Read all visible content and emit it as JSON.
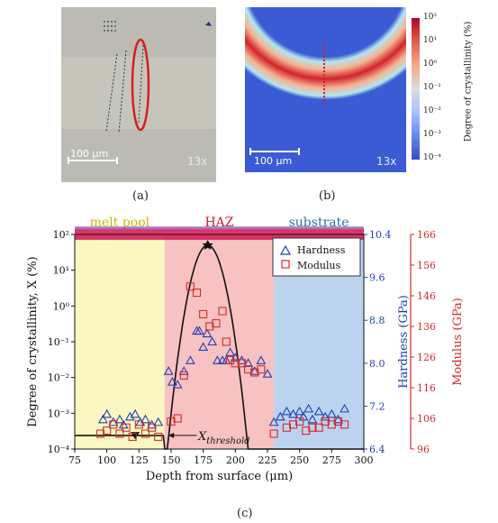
{
  "panel_a": {
    "label": "(a)",
    "scale_bar": "100 μm",
    "magnification": "13x"
  },
  "panel_b": {
    "label": "(b)",
    "scale_bar": "100 μm",
    "magnification": "13x",
    "colorbar": {
      "label": "Degree of crystallinity (%)",
      "ticks": [
        "10²",
        "10¹",
        "10⁰",
        "10⁻¹",
        "10⁻²",
        "10⁻³",
        "10⁻⁴"
      ]
    }
  },
  "panel_c": {
    "label": "(c)"
  },
  "colors": {
    "hardness": "#1f3fb5",
    "modulus": "#d42a2a",
    "melt_pool": "#fbf7c2",
    "haz": "#f8c2c2",
    "substrate": "#bcd3ef"
  },
  "chart_data": {
    "type": "scatter",
    "region_labels": [
      "melt pool",
      "HAZ",
      "substrate"
    ],
    "region_bounds": [
      [
        75,
        145
      ],
      [
        145,
        230
      ],
      [
        230,
        300
      ]
    ],
    "xlabel": "Depth from surface (μm)",
    "ylabel": "Degree of crystallinity, X (%)",
    "y2label": "Hardness (GPa)",
    "y3label": "Modulus (GPa)",
    "xlim": [
      75,
      300
    ],
    "ylim_log": [
      -4,
      2
    ],
    "y2lim": [
      6.4,
      10.4
    ],
    "y3lim": [
      96,
      166
    ],
    "x_ticks": [
      "75",
      "100",
      "125",
      "150",
      "175",
      "200",
      "225",
      "250",
      "275",
      "300"
    ],
    "y_ticks": [
      "10⁻⁴",
      "10⁻³",
      "10⁻²",
      "10⁻¹",
      "10⁰",
      "10¹",
      "10²"
    ],
    "y2_ticks": [
      "6.4",
      "7.2",
      "8.0",
      "8.8",
      "9.6",
      "10.4"
    ],
    "y3_ticks": [
      "96",
      "106",
      "116",
      "126",
      "136",
      "146",
      "156",
      "166"
    ],
    "threshold_label": "X_threshold",
    "legend": [
      "Hardness",
      "Modulus"
    ],
    "legend_position": "top-right",
    "hardness": {
      "x": [
        97,
        100,
        105,
        110,
        113,
        118,
        122,
        126,
        130,
        135,
        140,
        148,
        151,
        155,
        160,
        165,
        170,
        172,
        175,
        178,
        182,
        186,
        190,
        193,
        196,
        200,
        205,
        210,
        215,
        220,
        225,
        230,
        235,
        240,
        245,
        250,
        253,
        257,
        260,
        265,
        270,
        275,
        280,
        285
      ],
      "y": [
        6.95,
        7.05,
        6.9,
        6.95,
        6.85,
        7.0,
        7.05,
        6.9,
        6.95,
        6.85,
        6.9,
        7.85,
        7.65,
        7.6,
        7.85,
        8.05,
        8.6,
        8.6,
        8.3,
        8.55,
        8.4,
        8.05,
        8.05,
        8.05,
        8.2,
        8.1,
        8.05,
        8.0,
        7.85,
        8.05,
        7.8,
        6.9,
        7.0,
        7.1,
        7.05,
        7.1,
        7.0,
        7.15,
        6.95,
        7.1,
        7.0,
        7.05,
        6.95,
        7.15
      ]
    },
    "modulus": {
      "x": [
        95,
        100,
        105,
        110,
        115,
        120,
        125,
        130,
        135,
        140,
        150,
        155,
        160,
        165,
        170,
        175,
        180,
        185,
        190,
        193,
        196,
        200,
        205,
        210,
        215,
        220,
        230,
        240,
        245,
        250,
        255,
        260,
        265,
        270,
        275,
        280,
        285
      ],
      "y": [
        101,
        102,
        104,
        101,
        103,
        100,
        104,
        101,
        103,
        100,
        105,
        106,
        120,
        149,
        147,
        140,
        136,
        137,
        141,
        131,
        125,
        124,
        124,
        122,
        121,
        122,
        101,
        103,
        104,
        105,
        102,
        103,
        103,
        105,
        104,
        105,
        104
      ]
    }
  }
}
